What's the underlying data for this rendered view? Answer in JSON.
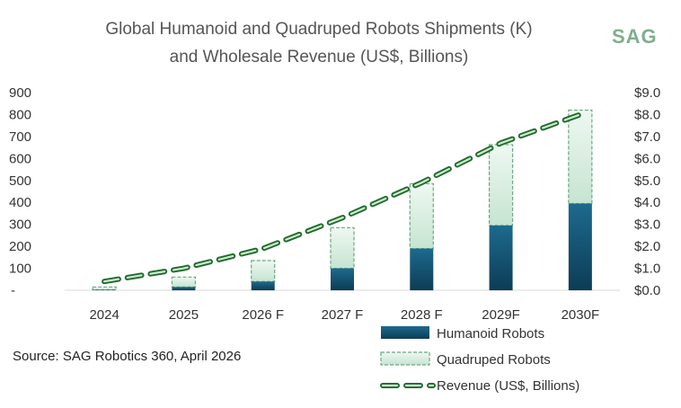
{
  "chart_data": {
    "type": "bar",
    "title": "Global Humanoid and Quadruped Robots Shipments (K)",
    "subtitle": "and Wholesale Revenue (US$, Billions)",
    "categories": [
      "2024",
      "2025",
      "2026 F",
      "2027 F",
      "2028 F",
      "2029F",
      "2030F"
    ],
    "stacked": true,
    "series": [
      {
        "name": "Humanoid Robots",
        "type": "bar",
        "axis": "left",
        "values": [
          2,
          15,
          40,
          100,
          190,
          295,
          395
        ],
        "color": "#1a5e80"
      },
      {
        "name": "Quadruped Robots",
        "type": "bar",
        "axis": "left",
        "values": [
          13,
          45,
          95,
          185,
          295,
          368,
          425
        ],
        "color": "#d6eddf",
        "border_color": "#6aa882"
      },
      {
        "name": "Revenue (US$, Billions)",
        "type": "line",
        "axis": "right",
        "values": [
          0.4,
          1.0,
          1.9,
          3.3,
          4.9,
          6.7,
          8.0
        ],
        "color": "#2e7d32",
        "style": "dashed"
      }
    ],
    "y_left": {
      "min": 0,
      "max": 900,
      "ticks": [
        "-",
        "100",
        "200",
        "300",
        "400",
        "500",
        "600",
        "700",
        "800",
        "900"
      ]
    },
    "y_right": {
      "min": 0,
      "max": 9,
      "ticks": [
        "$0.0",
        "$1.0",
        "$2.0",
        "$3.0",
        "$4.0",
        "$5.0",
        "$6.0",
        "$7.0",
        "$8.0",
        "$9.0"
      ]
    },
    "grid": false,
    "legend_position": "bottom-right"
  },
  "logo_text": "SAG",
  "source": "Source: SAG Robotics 360, April  2026"
}
